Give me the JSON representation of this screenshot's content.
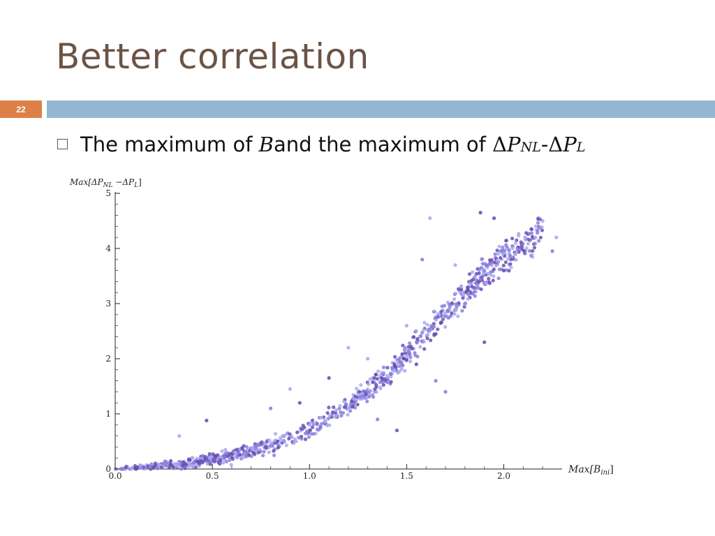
{
  "slide": {
    "title": "Better correlation",
    "number": "22",
    "bullet": {
      "text_a": "The maximum of ",
      "var_b": "B",
      "text_b": " and the maximum of ",
      "delta1": "Δ",
      "p1": "P",
      "sub1": "NL",
      "dash": "-",
      "delta2": "Δ",
      "p2": "P",
      "sub2": "L"
    }
  },
  "colors": {
    "title": "#6b5445",
    "number_box": "#dd8047",
    "rule": "#94b6d2",
    "points_dark": "#6a4fb3",
    "points_mid": "#8a7fdc",
    "points_light": "#a8aaf0"
  },
  "chart_data": {
    "type": "scatter",
    "xlabel_prefix": "Max[",
    "xlabel_var": "B",
    "xlabel_sub": "ini",
    "xlabel_suffix": "]",
    "ylabel_prefix": "Max[",
    "ylabel_d1": "ΔP",
    "ylabel_sub1": "NL",
    "ylabel_mid": " −",
    "ylabel_d2": "ΔP",
    "ylabel_sub2": "L",
    "ylabel_suffix": "]",
    "xlim": [
      0,
      2.3
    ],
    "ylim": [
      0,
      5
    ],
    "x_ticks": [
      "0.0",
      "0.5",
      "1.0",
      "1.5",
      "2.0"
    ],
    "x_tick_values": [
      0,
      0.5,
      1.0,
      1.5,
      2.0
    ],
    "y_ticks": [
      "0",
      "1",
      "2",
      "3",
      "4",
      "5"
    ],
    "y_tick_values": [
      0,
      1,
      2,
      3,
      4,
      5
    ],
    "grid": false,
    "trend_samples": [
      [
        0.0,
        0.0
      ],
      [
        0.2,
        0.05
      ],
      [
        0.4,
        0.12
      ],
      [
        0.6,
        0.25
      ],
      [
        0.8,
        0.42
      ],
      [
        1.0,
        0.7
      ],
      [
        1.2,
        1.15
      ],
      [
        1.4,
        1.7
      ],
      [
        1.6,
        2.45
      ],
      [
        1.8,
        3.2
      ],
      [
        2.0,
        3.85
      ],
      [
        2.2,
        4.35
      ]
    ],
    "outliers": [
      [
        0.33,
        0.6
      ],
      [
        0.47,
        0.88
      ],
      [
        0.62,
        0.3
      ],
      [
        0.8,
        1.1
      ],
      [
        0.9,
        1.45
      ],
      [
        0.95,
        1.2
      ],
      [
        1.1,
        1.65
      ],
      [
        1.2,
        2.2
      ],
      [
        1.3,
        2.0
      ],
      [
        1.35,
        0.9
      ],
      [
        1.45,
        0.7
      ],
      [
        1.5,
        2.6
      ],
      [
        1.58,
        3.8
      ],
      [
        1.62,
        4.55
      ],
      [
        1.7,
        1.4
      ],
      [
        1.75,
        3.7
      ],
      [
        1.88,
        4.65
      ],
      [
        1.95,
        4.55
      ],
      [
        2.0,
        3.6
      ],
      [
        2.2,
        4.5
      ],
      [
        2.27,
        4.2
      ],
      [
        2.25,
        3.95
      ],
      [
        1.9,
        2.3
      ],
      [
        1.65,
        1.6
      ],
      [
        1.55,
        1.9
      ]
    ]
  }
}
